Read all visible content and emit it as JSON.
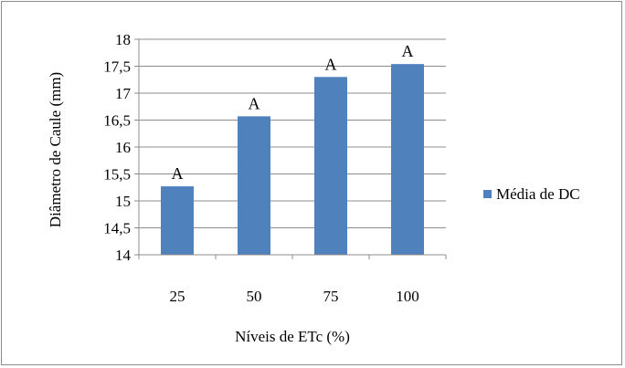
{
  "chart_data": {
    "type": "bar",
    "categories": [
      "25",
      "50",
      "75",
      "100"
    ],
    "series": [
      {
        "name": "Média de DC",
        "values": [
          15.27,
          16.57,
          17.3,
          17.54
        ],
        "data_labels": [
          "A",
          "A",
          "A",
          "A"
        ],
        "color": "#4f81bd"
      }
    ],
    "xlabel": "Níveis de ETc (%)",
    "ylabel": "Diâmetro de Caule (mm)",
    "ylim": [
      14,
      18
    ],
    "yticks": [
      14,
      14.5,
      15,
      15.5,
      16,
      16.5,
      17,
      17.5,
      18
    ],
    "ytick_labels": [
      "14",
      "14,5",
      "15",
      "15,5",
      "16",
      "16,5",
      "17",
      "17,5",
      "18"
    ],
    "grid": true,
    "legend_position": "right"
  }
}
